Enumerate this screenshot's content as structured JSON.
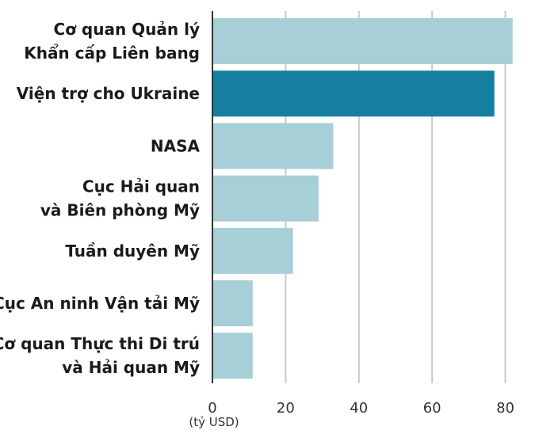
{
  "chart_data": {
    "type": "bar",
    "orientation": "horizontal",
    "categories": [
      [
        "Cơ quan Quản lý",
        "Khẩn cấp Liên bang"
      ],
      [
        "Viện trợ cho Ukraine"
      ],
      [
        "NASA"
      ],
      [
        "Cục Hải quan",
        "và Biên phòng Mỹ"
      ],
      [
        "Tuần duyên Mỹ"
      ],
      [
        "Cục An ninh Vận tải Mỹ"
      ],
      [
        "Cơ quan Thực thi Di trú",
        "và Hải quan Mỹ"
      ]
    ],
    "values": [
      82,
      77,
      33,
      29,
      22,
      11,
      11
    ],
    "highlight_index": 1,
    "colors": {
      "default": "#a6cfd7",
      "highlight": "#157fa1"
    },
    "xlim": [
      0,
      84
    ],
    "x_ticks": [
      0,
      20,
      40,
      60,
      80
    ],
    "x_unit": "(tỷ USD)",
    "title": "",
    "xlabel": "",
    "ylabel": "",
    "grid": true
  }
}
